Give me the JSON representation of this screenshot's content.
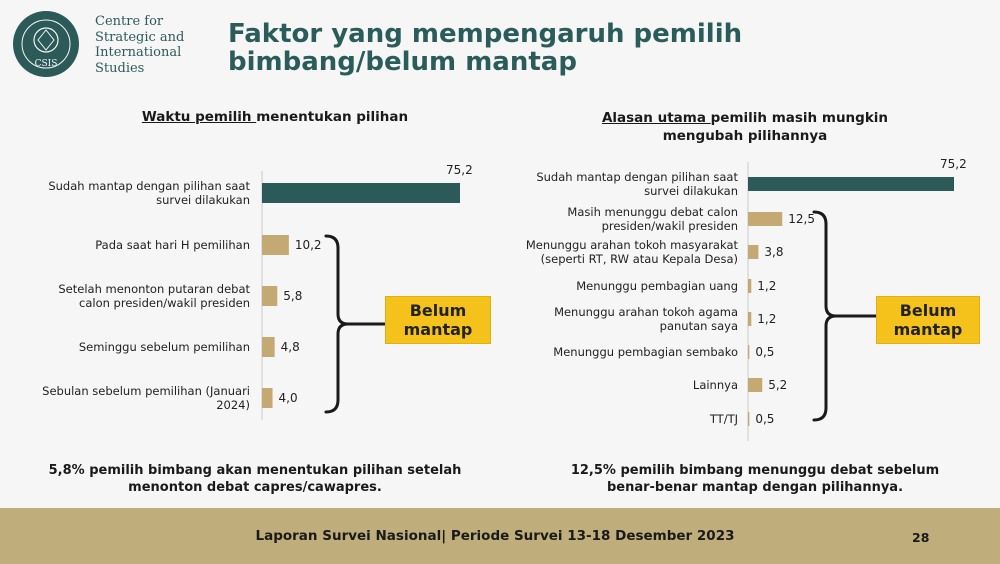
{
  "header": {
    "org_name": "Centre for\nStrategic and\nInternational\nStudies",
    "logo_text": "CSIS",
    "logo_ring_text": "NALAR AJAR TERUSAN BUDI",
    "title": "Faktor yang mempengaruh pemilih bimbang/belum mantap"
  },
  "colors": {
    "teal": "#2b5a59",
    "tan": "#c4a972",
    "yellow": "#f4c21a",
    "footer": "#bfae7b"
  },
  "chart_data": [
    {
      "type": "bar",
      "orientation": "horizontal",
      "title_underlined": "Waktu pemilih ",
      "title_rest": "menentukan pilihan",
      "categories": [
        "Sudah mantap dengan pilihan saat survei dilakukan",
        "Pada saat hari H pemilihan",
        "Setelah menonton putaran debat calon presiden/wakil presiden",
        "Seminggu sebelum pemilihan",
        "Sebulan sebelum pemilihan (Januari 2024)"
      ],
      "values": [
        75.2,
        10.2,
        5.8,
        4.8,
        4.0
      ],
      "value_labels": [
        "75,2",
        "10,2",
        "5,8",
        "4,8",
        "4,0"
      ],
      "bracket_label": "Belum mantap",
      "note": "5,8% pemilih bimbang akan menentukan pilihan setelah menonton debat capres/cawapres."
    },
    {
      "type": "bar",
      "orientation": "horizontal",
      "title_underlined": "Alasan utama ",
      "title_rest": "pemilih masih mungkin mengubah pilihannya",
      "categories": [
        "Sudah mantap dengan pilihan saat survei dilakukan",
        "Masih menunggu debat calon presiden/wakil presiden",
        "Menunggu arahan tokoh masyarakat (seperti RT, RW atau Kepala Desa)",
        "Menunggu pembagian uang",
        "Menunggu arahan tokoh agama panutan saya",
        "Menunggu pembagian sembako",
        "Lainnya",
        "TT/TJ"
      ],
      "values": [
        75.2,
        12.5,
        3.8,
        1.2,
        1.2,
        0.5,
        5.2,
        0.5
      ],
      "value_labels": [
        "75,2",
        "12,5",
        "3,8",
        "1,2",
        "1,2",
        "0,5",
        "5,2",
        "0,5"
      ],
      "bracket_label": "Belum mantap",
      "note": "12,5% pemilih bimbang menunggu debat sebelum benar-benar mantap dengan pilihannya."
    }
  ],
  "footer": {
    "text": "Laporan Survei Nasional| Periode Survei 13-18 Desember 2023",
    "page_number": "28"
  }
}
